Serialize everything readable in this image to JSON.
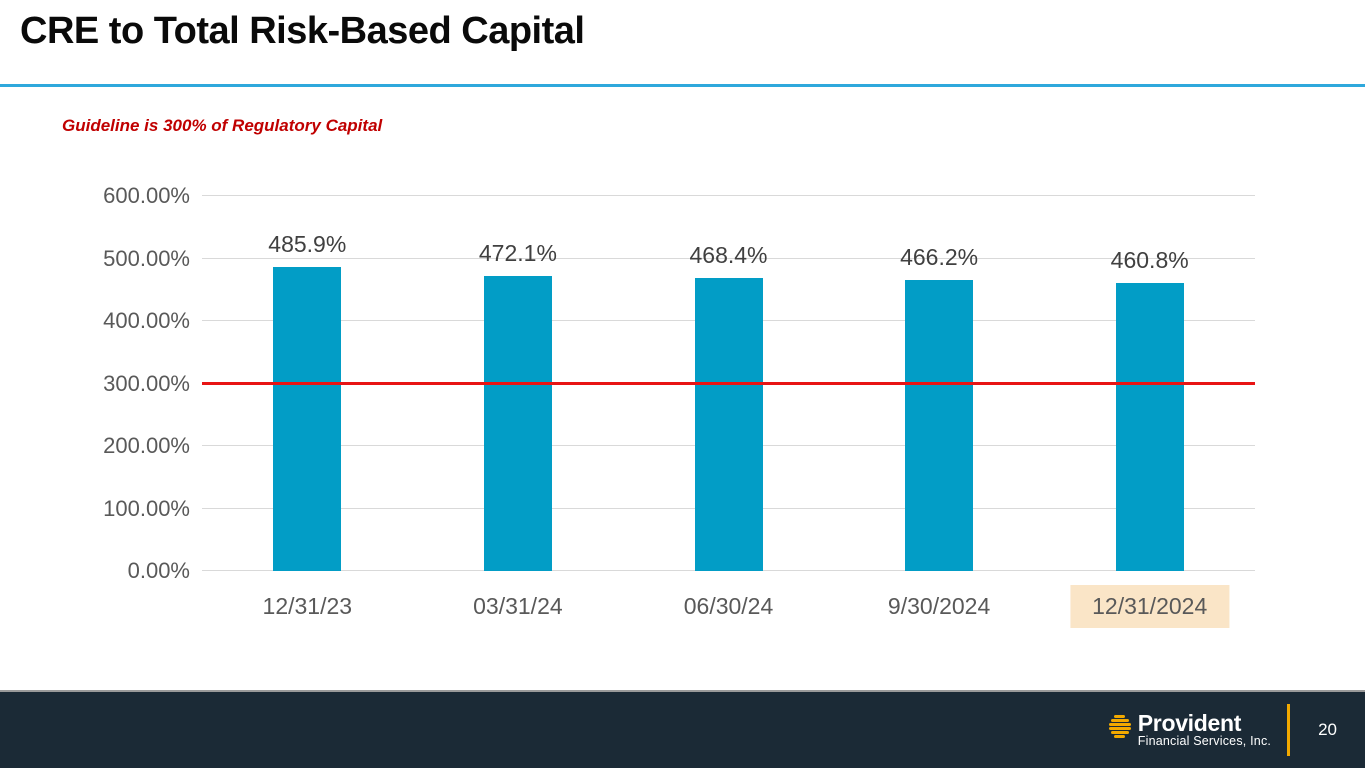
{
  "slide": {
    "title": "CRE to Total Risk-Based Capital",
    "guideline_note": "Guideline is 300% of Regulatory Capital"
  },
  "footer": {
    "brand_name": "Provident",
    "brand_subtitle": "Financial Services, Inc.",
    "page_number": "20"
  },
  "colors": {
    "bar": "#029DC6",
    "guideline_line": "#E81414",
    "accent_rule": "#2EA8DC",
    "note_red": "#C00000",
    "footer_bg": "#1B2A36",
    "gold": "#F2A900",
    "highlight": "#FAE5C7",
    "axis_text": "#595959",
    "gridline": "#D9D9D9"
  },
  "chart_data": {
    "type": "bar",
    "title": "CRE to Total Risk-Based Capital",
    "xlabel": "",
    "ylabel": "",
    "categories": [
      "12/31/23",
      "03/31/24",
      "06/30/24",
      "9/30/2024",
      "12/31/2024"
    ],
    "values": [
      485.9,
      472.1,
      468.4,
      466.2,
      460.8
    ],
    "bar_labels": [
      "485.9%",
      "472.1%",
      "468.4%",
      "466.2%",
      "460.8%"
    ],
    "ylim": [
      0,
      600
    ],
    "yticks": [
      0,
      100,
      200,
      300,
      400,
      500,
      600
    ],
    "ytick_labels": [
      "0.00%",
      "100.00%",
      "200.00%",
      "300.00%",
      "400.00%",
      "500.00%",
      "600.00%"
    ],
    "grid": true,
    "legend": false,
    "reference_line": {
      "value": 300,
      "label": "Guideline is 300% of Regulatory Capital"
    },
    "highlighted_category": "12/31/2024",
    "bar_color": "#029DC6",
    "reference_line_color": "#E81414"
  }
}
